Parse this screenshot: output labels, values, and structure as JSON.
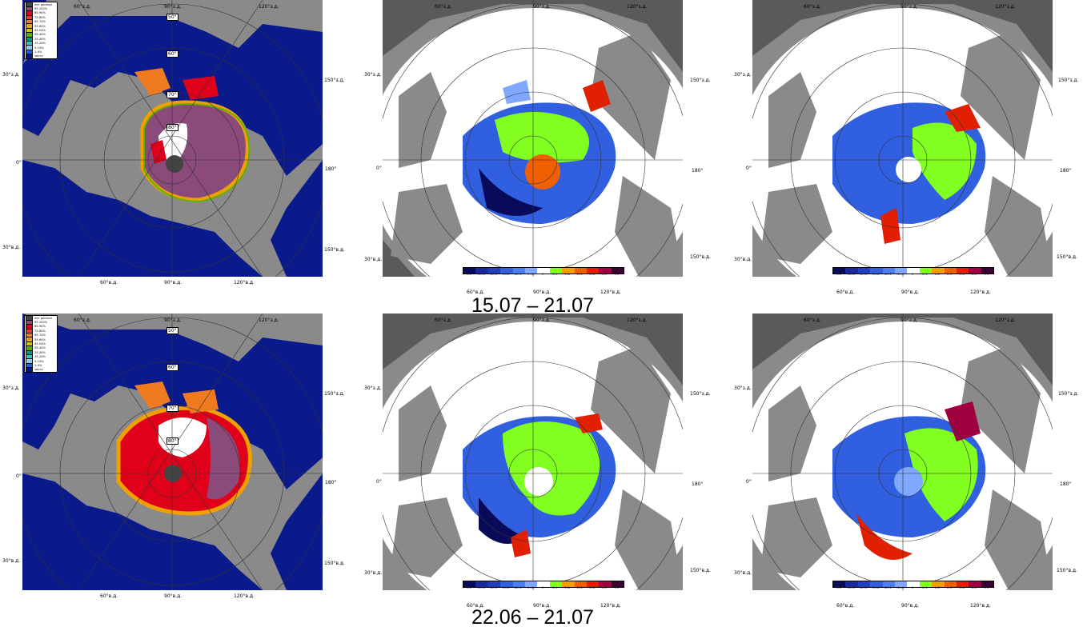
{
  "captions": {
    "row1": "15.07 – 21.07",
    "row2": "22.06 – 21.07"
  },
  "grid_labels": {
    "top_left": "60°з.д.",
    "top_mid": "90°з.д.",
    "top_right": "120°з.д.",
    "left_upper": "30°з.д.",
    "left_mid": "0°",
    "left_lower": "30°в.д.",
    "right_upper": "150°з.д.",
    "right_mid": "180°",
    "right_lower": "150°в.д.",
    "bottom_left": "60°в.д.",
    "bottom_mid": "90°в.д.",
    "bottom_right": "120°в.д.",
    "lat_50": "50°",
    "lat_60": "60°",
    "lat_70": "70°",
    "lat_80": "80°"
  },
  "concentration_legend": [
    {
      "label": "нет данных",
      "color": "#444444"
    },
    {
      "label": "95-100%",
      "color": "#8a4a7a"
    },
    {
      "label": "85-94%",
      "color": "#e0001a"
    },
    {
      "label": "75-84%",
      "color": "#ee3a1a"
    },
    {
      "label": "65-74%",
      "color": "#f07b1e"
    },
    {
      "label": "55-64%",
      "color": "#e8a020"
    },
    {
      "label": "45-54%",
      "color": "#d8c000"
    },
    {
      "label": "35-44%",
      "color": "#60b000"
    },
    {
      "label": "25-34%",
      "color": "#00a070"
    },
    {
      "label": "15-24%",
      "color": "#40c0c0"
    },
    {
      "label": "5-14%",
      "color": "#80d0f0"
    },
    {
      "label": "1-4%",
      "color": "#2060e0"
    },
    {
      "label": "чисто",
      "color": "#001a8a"
    }
  ],
  "anomaly_colorbar": {
    "labels": [
      "<-5",
      "-5..-4",
      "-4..-3",
      "-3..-2",
      "-2..-1",
      "-1..-0",
      "0",
      "0..1",
      "1..2",
      "2..3",
      "3..4",
      "4..5",
      ">5"
    ],
    "colors": [
      "#0a0a5a",
      "#1a2aa0",
      "#2040c0",
      "#3060e0",
      "#4a80f0",
      "#80a8ff",
      "#ffffff",
      "#80ff20",
      "#f0a000",
      "#f06000",
      "#e02000",
      "#a00040",
      "#3a0030"
    ]
  },
  "colors": {
    "land": "#8a8a8a",
    "open_water": "#0a1a8a",
    "no_data_dark": "#5a5a5a",
    "anomaly_bg": "#ffffff"
  }
}
